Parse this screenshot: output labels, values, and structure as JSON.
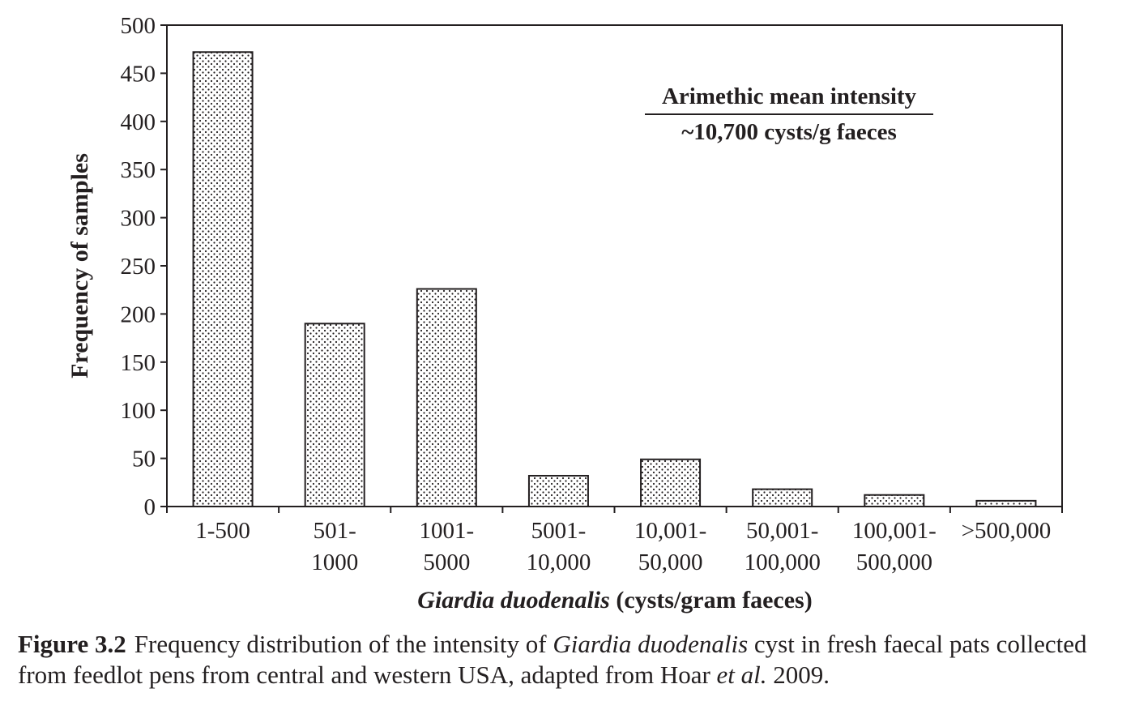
{
  "chart_data": {
    "type": "bar",
    "categories": [
      [
        "1-500"
      ],
      [
        "501-",
        "1000"
      ],
      [
        "1001-",
        "5000"
      ],
      [
        "5001-",
        "10,000"
      ],
      [
        "10,001-",
        "50,000"
      ],
      [
        "50,001-",
        "100,000"
      ],
      [
        "100,001-",
        "500,000"
      ],
      [
        ">500,000"
      ]
    ],
    "values": [
      472,
      190,
      226,
      32,
      49,
      18,
      12,
      6
    ],
    "ylabel": "Frequency of samples",
    "xlabel_italic": "Giardia duodenalis",
    "xlabel_rest": " (cysts/gram faeces)",
    "ylim": [
      0,
      500
    ],
    "yticks": [
      0,
      50,
      100,
      150,
      200,
      250,
      300,
      350,
      400,
      450,
      500
    ],
    "grid": false,
    "annotation": {
      "line1": "Arimethic mean intensity",
      "line2": "~10,700 cysts/g faeces"
    },
    "bar_fill": "dotted",
    "colors": {
      "ink": "#231f20",
      "bar_bg": "#ffffff"
    }
  },
  "caption": {
    "label": "Figure 3.2",
    "parts": [
      {
        "text": "Frequency distribution of the intensity of ",
        "italic": false
      },
      {
        "text": "Giardia duodenalis",
        "italic": true
      },
      {
        "text": " cyst in fresh faecal pats collected from feedlot pens from central and western USA, adapted from Hoar ",
        "italic": false
      },
      {
        "text": "et al.",
        "italic": true
      },
      {
        "text": " 2009.",
        "italic": false
      }
    ]
  }
}
